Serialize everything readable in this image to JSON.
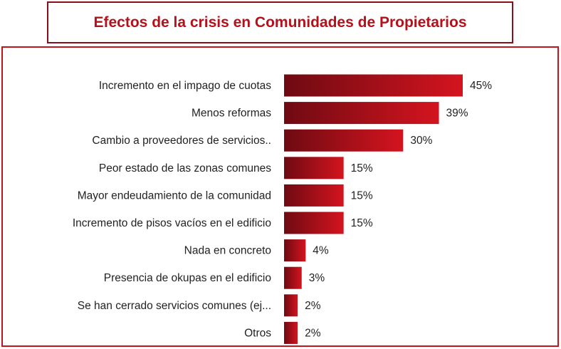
{
  "chart_data": {
    "type": "bar",
    "orientation": "horizontal",
    "title": "Efectos de la crisis en Comunidades de Propietarios",
    "categories": [
      "Incremento en el impago de cuotas",
      "Menos reformas",
      "Cambio a proveedores de servicios..",
      "Peor estado de las zonas comunes",
      "Mayor endeudamiento de la comunidad",
      "Incremento de pisos vacíos en el edificio",
      "Nada en concreto",
      "Presencia de okupas en el edificio",
      "Se han cerrado servicios comunes (ej...",
      "Otros"
    ],
    "values": [
      45,
      39,
      30,
      15,
      15,
      15,
      4,
      3,
      2,
      2
    ],
    "value_labels": [
      "45%",
      "39%",
      "30%",
      "15%",
      "15%",
      "15%",
      "4%",
      "3%",
      "2%",
      "2%"
    ],
    "xlim": [
      0,
      45
    ],
    "grid": false,
    "legend": "none",
    "colors": {
      "bar_dark": "#6e0a12",
      "bar_light": "#d4141f",
      "title": "#b4111b",
      "frame": "#c0141e"
    }
  }
}
